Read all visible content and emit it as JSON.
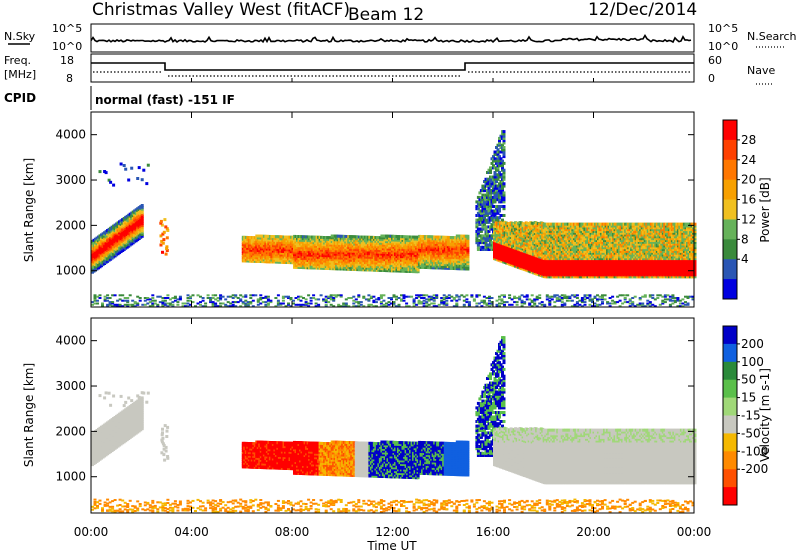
{
  "header": {
    "station": "Christmas Valley West (fitACF)",
    "beam": "Beam 12",
    "date": "12/Dec/2014"
  },
  "summary_panels": {
    "nsky_label": "N.Sky",
    "nsky_ticks": [
      "10^5",
      "10^0"
    ],
    "nsearch_label": "N.Search",
    "nsearch_ticks": [
      "10^5",
      "10^0"
    ],
    "freq_label_1": "Freq.",
    "freq_label_2": "[MHz]",
    "freq_ticks": [
      "18",
      "8"
    ],
    "nave_label": "Nave",
    "nave_ticks": [
      "60",
      "0"
    ],
    "cpid_label": "CPID",
    "cpid_text": "normal (fast) -151 IF"
  },
  "chart_data": [
    {
      "type": "heatmap",
      "name": "power",
      "ylabel": "Slant Range [km]",
      "xlabel": "",
      "yticks": [
        "1000",
        "2000",
        "3000",
        "4000"
      ],
      "ylim": [
        200,
        4500
      ],
      "colorbar_label": "Power [dB]",
      "colorbar_ticks": [
        "4",
        "8",
        "12",
        "16",
        "20",
        "24",
        "28"
      ],
      "colorbar_colors": [
        "#0000e0",
        "#2a56b4",
        "#3a8a3c",
        "#66b25a",
        "#f0c020",
        "#f7a000",
        "#ff7700",
        "#ff4000",
        "#ff0000"
      ]
    },
    {
      "type": "heatmap",
      "name": "velocity",
      "ylabel": "Slant Range [km]",
      "xlabel": "Time UT",
      "yticks": [
        "1000",
        "2000",
        "3000",
        "4000"
      ],
      "ylim": [
        200,
        4500
      ],
      "xticks": [
        "00:00",
        "04:00",
        "08:00",
        "12:00",
        "16:00",
        "20:00",
        "00:00"
      ],
      "colorbar_label": "Velocity [m s-1]",
      "colorbar_ticks": [
        "200",
        "100",
        "50",
        "15",
        "-15",
        "-50",
        "-100",
        "-200"
      ],
      "colorbar_colors": [
        "#0000c8",
        "#1060e0",
        "#2a8a3a",
        "#5abf4a",
        "#a0d878",
        "#c8c8c0",
        "#f5b800",
        "#ff8a00",
        "#ff5000",
        "#ff0000"
      ]
    }
  ]
}
